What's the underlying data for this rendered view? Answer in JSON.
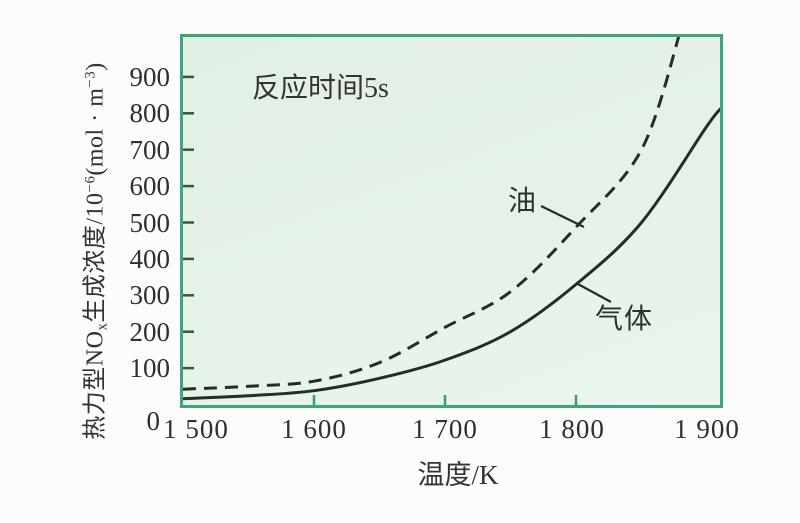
{
  "chart_data": {
    "type": "line",
    "title": "",
    "annotation": "反应时间5s",
    "xlabel": "温度/K",
    "ylabel": "热力型NOx生成浓度/10^-6(mol·m^-3)",
    "ylabel_segments": [
      {
        "t": "热力型NO"
      },
      {
        "t": "x",
        "style": "sub"
      },
      {
        "t": "生成浓度/10"
      },
      {
        "t": "−6",
        "style": "sup"
      },
      {
        "t": "(mol · m"
      },
      {
        "t": "−3",
        "style": "sup"
      },
      {
        "t": ")"
      }
    ],
    "xlim": [
      1500,
      1912
    ],
    "ylim": [
      0,
      1000
    ],
    "grid": false,
    "legend": "inline-labels",
    "x_tick_labels": [
      {
        "value": 1500,
        "label": "1 500"
      },
      {
        "value": 1600,
        "label": "1 600"
      },
      {
        "value": 1700,
        "label": "1 700"
      },
      {
        "value": 1800,
        "label": "1 800"
      },
      {
        "value": 1900,
        "label": "1 900"
      }
    ],
    "x_tick_marks": [
      1600,
      1700,
      1800
    ],
    "y_tick_labels": [
      {
        "value": 0,
        "label": "0"
      },
      {
        "value": 100,
        "label": "100"
      },
      {
        "value": 200,
        "label": "200"
      },
      {
        "value": 300,
        "label": "300"
      },
      {
        "value": 400,
        "label": "400"
      },
      {
        "value": 500,
        "label": "500"
      },
      {
        "value": 600,
        "label": "600"
      },
      {
        "value": 700,
        "label": "700"
      },
      {
        "value": 800,
        "label": "800"
      },
      {
        "value": 900,
        "label": "900"
      }
    ],
    "y_tick_marks": [
      100,
      200,
      300,
      400,
      500,
      600,
      700,
      800,
      900
    ],
    "series": [
      {
        "name": "油",
        "line_style": "dashed",
        "color": "#242d26",
        "points": [
          [
            1500,
            42
          ],
          [
            1550,
            50
          ],
          [
            1600,
            64
          ],
          [
            1650,
            115
          ],
          [
            1700,
            212
          ],
          [
            1750,
            310
          ],
          [
            1800,
            487
          ],
          [
            1850,
            700
          ],
          [
            1880,
            1030
          ]
        ]
      },
      {
        "name": "气体",
        "line_style": "solid",
        "color": "#242d26",
        "points": [
          [
            1500,
            16
          ],
          [
            1550,
            24
          ],
          [
            1600,
            38
          ],
          [
            1650,
            72
          ],
          [
            1700,
            122
          ],
          [
            1750,
            200
          ],
          [
            1800,
            330
          ],
          [
            1850,
            500
          ],
          [
            1900,
            765
          ],
          [
            1912,
            818
          ]
        ]
      }
    ],
    "colors": {
      "plot_bg": "#e7f3e9",
      "frame": "#3ea47a",
      "curve": "#242d26",
      "x_tick": "#2ea172",
      "y_tick": "#2c5c44",
      "text": "#2f2f2f"
    }
  }
}
